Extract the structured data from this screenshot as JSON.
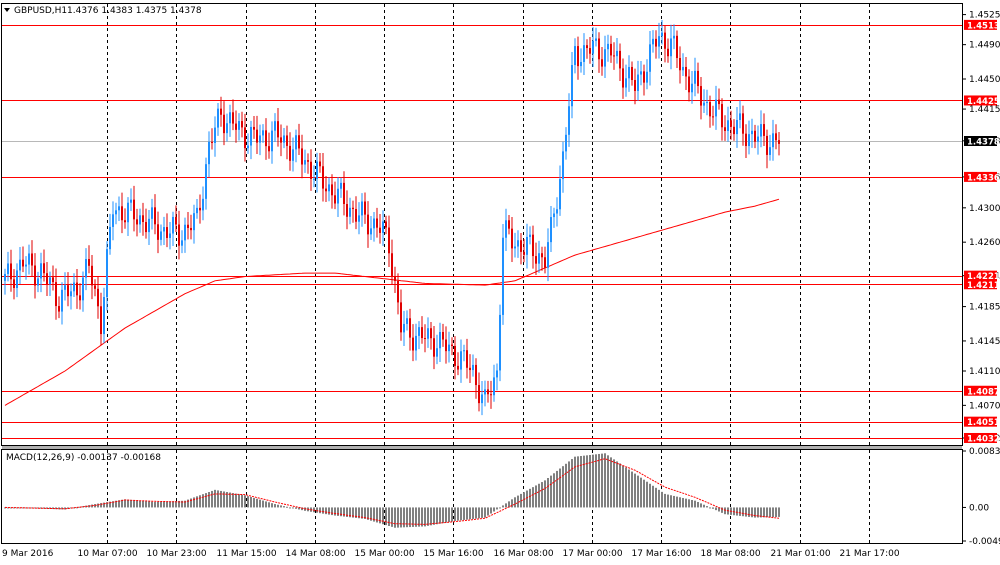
{
  "header": {
    "symbol_tf": "GBPUSD,H1",
    "ohlc": "1.4376 1.4383 1.4375 1.4378"
  },
  "macd_header": {
    "label": "MACD(12,26,9) -0.00137 -0.00168"
  },
  "colors": {
    "bull": "#1e90ff",
    "bear": "#e00000",
    "ma": "#ff0000",
    "level": "#ff0000",
    "current": "#b8b8b8",
    "hist": "#808080",
    "signal": "#ff0000",
    "grid": "#000000",
    "current_badge": "#000000"
  },
  "chart_data": [
    {
      "type": "candlestick",
      "symbol": "GBPUSD",
      "timeframe": "H1",
      "ylim": [
        1.4025,
        1.4535
      ],
      "y_ticks": [
        "1.4525",
        "1.4490",
        "1.4450",
        "1.4415",
        "1.4378",
        "1.4336",
        "1.4300",
        "1.4260",
        "1.4221",
        "1.4185",
        "1.4145",
        "1.4110",
        "1.4070",
        "1.4032"
      ],
      "x_labels": [
        "9 Mar 2016",
        "10 Mar 07:00",
        "10 Mar 23:00",
        "11 Mar 15:00",
        "14 Mar 08:00",
        "15 Mar 00:00",
        "15 Mar 16:00",
        "16 Mar 08:00",
        "17 Mar 00:00",
        "17 Mar 16:00",
        "18 Mar 08:00",
        "21 Mar 01:00",
        "21 Mar 17:00"
      ],
      "horizontal_levels": [
        "1.4513",
        "1.4425",
        "1.4336",
        "1.4221",
        "1.4211",
        "1.4087",
        "1.4051",
        "1.4032"
      ],
      "current_price": "1.4378",
      "close_path": [
        [
          0,
          1.4215
        ],
        [
          6,
          1.4235
        ],
        [
          12,
          1.4225
        ],
        [
          18,
          1.4195
        ],
        [
          24,
          1.4205
        ],
        [
          28,
          1.423
        ],
        [
          32,
          1.417
        ],
        [
          36,
          1.43
        ],
        [
          44,
          1.429
        ],
        [
          52,
          1.4275
        ],
        [
          58,
          1.427
        ],
        [
          64,
          1.4285
        ],
        [
          68,
          1.437
        ],
        [
          72,
          1.441
        ],
        [
          78,
          1.439
        ],
        [
          84,
          1.438
        ],
        [
          90,
          1.4385
        ],
        [
          96,
          1.437
        ],
        [
          100,
          1.4355
        ],
        [
          106,
          1.433
        ],
        [
          112,
          1.431
        ],
        [
          118,
          1.429
        ],
        [
          124,
          1.428
        ],
        [
          128,
          1.426
        ],
        [
          132,
          1.416
        ],
        [
          138,
          1.415
        ],
        [
          144,
          1.4145
        ],
        [
          150,
          1.413
        ],
        [
          156,
          1.411
        ],
        [
          160,
          1.407
        ],
        [
          164,
          1.411
        ],
        [
          166,
          1.427
        ],
        [
          170,
          1.426
        ],
        [
          176,
          1.425
        ],
        [
          180,
          1.424
        ],
        [
          182,
          1.427
        ],
        [
          186,
          1.436
        ],
        [
          190,
          1.448
        ],
        [
          196,
          1.4485
        ],
        [
          202,
          1.448
        ],
        [
          206,
          1.446
        ],
        [
          210,
          1.444
        ],
        [
          214,
          1.447
        ],
        [
          218,
          1.45
        ],
        [
          222,
          1.449
        ],
        [
          226,
          1.446
        ],
        [
          230,
          1.444
        ],
        [
          234,
          1.442
        ],
        [
          240,
          1.44
        ],
        [
          246,
          1.439
        ],
        [
          252,
          1.438
        ],
        [
          258,
          1.4378
        ]
      ],
      "moving_average": [
        [
          0,
          1.407
        ],
        [
          20,
          1.411
        ],
        [
          40,
          1.416
        ],
        [
          60,
          1.42
        ],
        [
          70,
          1.4215
        ],
        [
          80,
          1.422
        ],
        [
          100,
          1.4224
        ],
        [
          110,
          1.4224
        ],
        [
          120,
          1.422
        ],
        [
          130,
          1.4216
        ],
        [
          140,
          1.4212
        ],
        [
          150,
          1.4211
        ],
        [
          160,
          1.421
        ],
        [
          170,
          1.4215
        ],
        [
          180,
          1.423
        ],
        [
          190,
          1.4245
        ],
        [
          200,
          1.4255
        ],
        [
          210,
          1.4265
        ],
        [
          220,
          1.4275
        ],
        [
          230,
          1.4285
        ],
        [
          240,
          1.4295
        ],
        [
          250,
          1.4302
        ],
        [
          258,
          1.431
        ]
      ]
    },
    {
      "type": "bar",
      "name": "MACD(12,26,9)",
      "ylim": [
        -0.00496,
        0.00834
      ],
      "y_ticks": [
        "0.00834",
        "0.00",
        "-0.00496"
      ],
      "macd_path": [
        [
          0,
          0.0
        ],
        [
          20,
          -0.0003
        ],
        [
          30,
          0.0005
        ],
        [
          40,
          0.0012
        ],
        [
          50,
          0.0008
        ],
        [
          60,
          0.001
        ],
        [
          70,
          0.0026
        ],
        [
          80,
          0.0018
        ],
        [
          90,
          0.0005
        ],
        [
          100,
          -0.0005
        ],
        [
          110,
          -0.0012
        ],
        [
          120,
          -0.0017
        ],
        [
          130,
          -0.003
        ],
        [
          140,
          -0.0028
        ],
        [
          150,
          -0.002
        ],
        [
          160,
          -0.0015
        ],
        [
          170,
          0.0015
        ],
        [
          180,
          0.004
        ],
        [
          190,
          0.0075
        ],
        [
          200,
          0.008
        ],
        [
          210,
          0.005
        ],
        [
          220,
          0.002
        ],
        [
          230,
          0.001
        ],
        [
          240,
          -0.001
        ],
        [
          250,
          -0.0015
        ],
        [
          258,
          -0.0014
        ]
      ],
      "signal_path": [
        [
          0,
          0.0
        ],
        [
          20,
          -0.0002
        ],
        [
          30,
          0.0003
        ],
        [
          40,
          0.0011
        ],
        [
          50,
          0.0009
        ],
        [
          60,
          0.0008
        ],
        [
          70,
          0.002
        ],
        [
          80,
          0.0019
        ],
        [
          90,
          0.0008
        ],
        [
          100,
          -0.0002
        ],
        [
          110,
          -0.0009
        ],
        [
          120,
          -0.0015
        ],
        [
          130,
          -0.0024
        ],
        [
          140,
          -0.0025
        ],
        [
          150,
          -0.0021
        ],
        [
          160,
          -0.0016
        ],
        [
          170,
          0.0005
        ],
        [
          180,
          0.0028
        ],
        [
          190,
          0.006
        ],
        [
          200,
          0.0072
        ],
        [
          210,
          0.0055
        ],
        [
          220,
          0.003
        ],
        [
          230,
          0.0015
        ],
        [
          240,
          -0.0004
        ],
        [
          250,
          -0.0012
        ],
        [
          258,
          -0.0016
        ]
      ]
    }
  ]
}
